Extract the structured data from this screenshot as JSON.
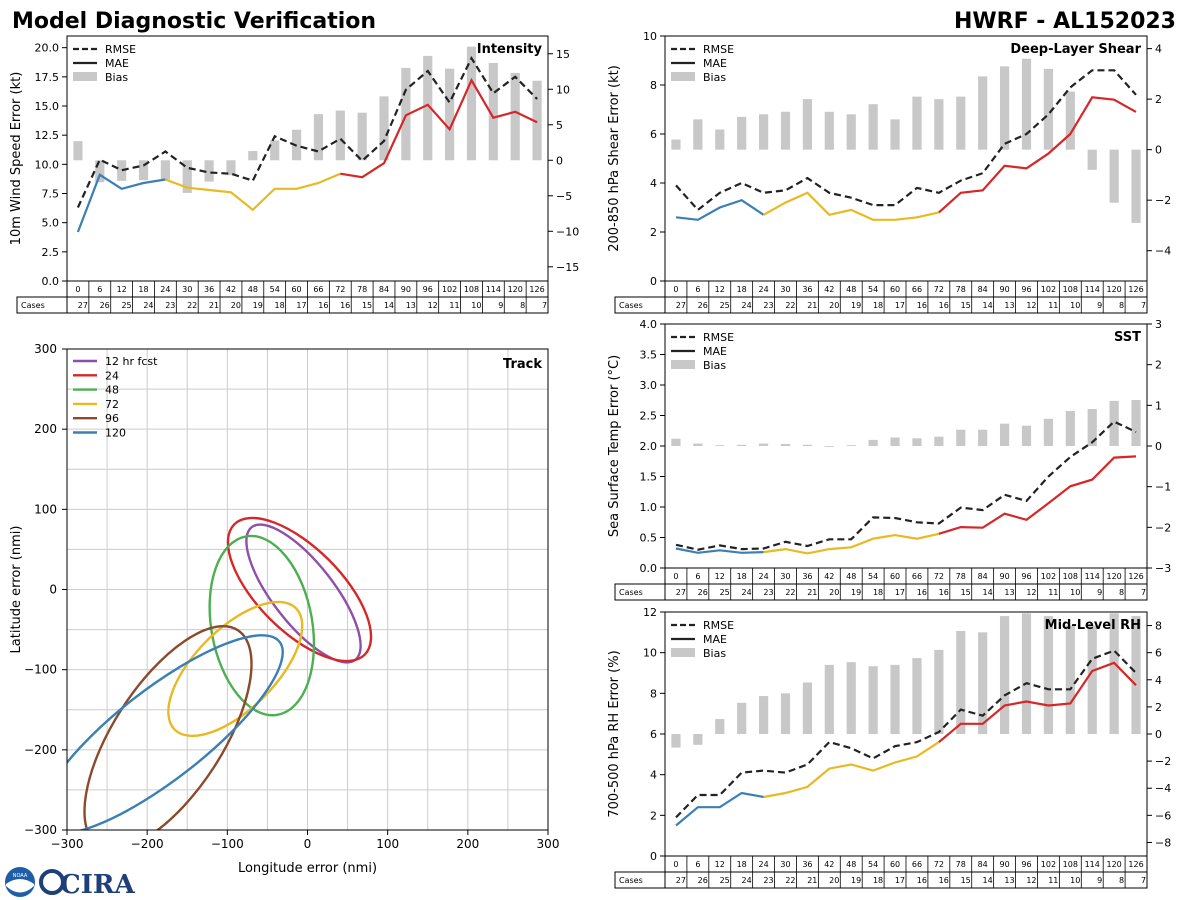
{
  "page": {
    "title_left": "Model Diagnostic Verification",
    "title_right": "HWRF - AL152023",
    "logo_text": "CIRA",
    "logo_seal_text": "NOAA"
  },
  "colors": {
    "rmse": "#222222",
    "mae_0_24": "#3a7fb5",
    "mae_24_72": "#e8b923",
    "mae_72_plus": "#d62728",
    "bias": "#c8c8c8",
    "grid": "#cccccc"
  },
  "chart_data": [
    {
      "id": "intensity",
      "type": "line",
      "title": "Intensity",
      "ylabel": "10m Wind Speed Error (kt)",
      "ylim": [
        0,
        21
      ],
      "yticks": [
        "0.0",
        "2.5",
        "5.0",
        "7.5",
        "10.0",
        "12.5",
        "15.0",
        "17.5",
        "20.0"
      ],
      "ytick_values": [
        0,
        2.5,
        5,
        7.5,
        10,
        12.5,
        15,
        17.5,
        20
      ],
      "y2lim": [
        -17,
        17.5
      ],
      "y2ticks": [
        "−15",
        "−10",
        "−5",
        "0",
        "5",
        "10",
        "15"
      ],
      "y2tick_values": [
        -15,
        -10,
        -5,
        0,
        5,
        10,
        15
      ],
      "legend": [
        "RMSE",
        "MAE",
        "Bias"
      ],
      "x": [
        0,
        6,
        12,
        18,
        24,
        30,
        36,
        42,
        48,
        54,
        60,
        66,
        72,
        78,
        84,
        90,
        96,
        102,
        108,
        114,
        120,
        126
      ],
      "rmse": [
        6.3,
        10.4,
        9.5,
        9.9,
        11.1,
        9.7,
        9.3,
        9.2,
        8.6,
        12.4,
        11.6,
        11.1,
        12.2,
        10.3,
        12.0,
        16.4,
        18.0,
        15.3,
        19.1,
        16.1,
        17.5,
        15.6
      ],
      "mae": [
        4.2,
        9.1,
        7.9,
        8.4,
        8.7,
        8.0,
        7.8,
        7.6,
        6.1,
        7.9,
        7.9,
        8.4,
        9.2,
        8.9,
        10.1,
        14.2,
        15.1,
        13.0,
        17.2,
        14.0,
        14.5,
        13.6
      ],
      "bias": [
        2.7,
        -3.1,
        -2.9,
        -2.8,
        -2.7,
        -4.6,
        -3.0,
        -2.1,
        1.3,
        2.8,
        4.3,
        6.5,
        7.0,
        6.7,
        9.0,
        13.0,
        14.7,
        12.9,
        16.0,
        13.7,
        12.3,
        11.2
      ],
      "cases": [
        27,
        26,
        25,
        24,
        23,
        22,
        21,
        20,
        19,
        18,
        17,
        16,
        16,
        15,
        14,
        13,
        12,
        11,
        10,
        9,
        8,
        7
      ],
      "cases_label": "Cases"
    },
    {
      "id": "shear",
      "type": "line",
      "title": "Deep-Layer Shear",
      "ylabel": "200-850 hPa Shear Error (kt)",
      "ylim": [
        0,
        10
      ],
      "yticks": [
        "0",
        "2",
        "4",
        "6",
        "8",
        "10"
      ],
      "ytick_values": [
        0,
        2,
        4,
        6,
        8,
        10
      ],
      "y2lim": [
        -5.2,
        4.5
      ],
      "y2ticks": [
        "−4",
        "−2",
        "0",
        "2",
        "4"
      ],
      "y2tick_values": [
        -4,
        -2,
        0,
        2,
        4
      ],
      "legend": [
        "RMSE",
        "MAE",
        "Bias"
      ],
      "x": [
        0,
        6,
        12,
        18,
        24,
        30,
        36,
        42,
        48,
        54,
        60,
        66,
        72,
        78,
        84,
        90,
        96,
        102,
        108,
        114,
        120,
        126
      ],
      "rmse": [
        3.9,
        2.9,
        3.6,
        4.0,
        3.6,
        3.7,
        4.2,
        3.6,
        3.4,
        3.1,
        3.1,
        3.8,
        3.6,
        4.1,
        4.4,
        5.6,
        6.0,
        6.8,
        7.9,
        8.6,
        8.6,
        7.6
      ],
      "mae": [
        2.6,
        2.5,
        3.0,
        3.3,
        2.7,
        3.2,
        3.6,
        2.7,
        2.9,
        2.5,
        2.5,
        2.6,
        2.8,
        3.6,
        3.7,
        4.7,
        4.6,
        5.2,
        6.0,
        7.5,
        7.4,
        6.9
      ],
      "bias": [
        0.4,
        1.2,
        0.8,
        1.3,
        1.4,
        1.5,
        2.0,
        1.5,
        1.4,
        1.8,
        1.2,
        2.1,
        2.0,
        2.1,
        2.9,
        3.3,
        3.6,
        3.2,
        2.3,
        -0.8,
        -2.1,
        -2.9
      ],
      "cases": [
        27,
        26,
        25,
        24,
        23,
        22,
        21,
        20,
        19,
        18,
        17,
        16,
        16,
        15,
        14,
        13,
        12,
        11,
        10,
        9,
        8,
        7
      ],
      "cases_label": "Cases"
    },
    {
      "id": "sst",
      "type": "line",
      "title": "SST",
      "ylabel": "Sea Surface Temp Error (°C)",
      "ylim": [
        0,
        4
      ],
      "yticks": [
        "0.0",
        "0.5",
        "1.0",
        "1.5",
        "2.0",
        "2.5",
        "3.0",
        "3.5",
        "4.0"
      ],
      "ytick_values": [
        0,
        0.5,
        1,
        1.5,
        2,
        2.5,
        3,
        3.5,
        4
      ],
      "y2lim": [
        -3,
        3
      ],
      "y2ticks": [
        "−3",
        "−2",
        "−1",
        "0",
        "1",
        "2",
        "3"
      ],
      "y2tick_values": [
        -3,
        -2,
        -1,
        0,
        1,
        2,
        3
      ],
      "legend": [
        "RMSE",
        "MAE",
        "Bias"
      ],
      "x": [
        0,
        6,
        12,
        18,
        24,
        30,
        36,
        42,
        48,
        54,
        60,
        66,
        72,
        78,
        84,
        90,
        96,
        102,
        108,
        114,
        120,
        126
      ],
      "rmse": [
        0.38,
        0.3,
        0.37,
        0.31,
        0.32,
        0.43,
        0.36,
        0.47,
        0.47,
        0.83,
        0.82,
        0.75,
        0.73,
        0.99,
        0.95,
        1.2,
        1.1,
        1.5,
        1.82,
        2.06,
        2.4,
        2.23
      ],
      "mae": [
        0.32,
        0.25,
        0.29,
        0.25,
        0.26,
        0.31,
        0.24,
        0.31,
        0.34,
        0.48,
        0.54,
        0.48,
        0.56,
        0.67,
        0.66,
        0.89,
        0.79,
        1.06,
        1.34,
        1.45,
        1.81,
        1.83
      ],
      "bias": [
        0.18,
        0.06,
        0.02,
        0.03,
        0.06,
        0.05,
        0.03,
        -0.02,
        0.02,
        0.15,
        0.21,
        0.19,
        0.23,
        0.4,
        0.4,
        0.55,
        0.5,
        0.67,
        0.86,
        0.91,
        1.11,
        1.13
      ],
      "cases": [
        27,
        26,
        25,
        24,
        23,
        22,
        21,
        20,
        19,
        18,
        17,
        16,
        16,
        15,
        14,
        13,
        12,
        11,
        10,
        9,
        8,
        7
      ],
      "cases_label": "Cases"
    },
    {
      "id": "rh",
      "type": "line",
      "title": "Mid-Level RH",
      "ylabel": "700-500 hPa RH Error (%)",
      "ylim": [
        0,
        12
      ],
      "yticks": [
        "0",
        "2",
        "4",
        "6",
        "8",
        "10",
        "12"
      ],
      "ytick_values": [
        0,
        2,
        4,
        6,
        8,
        10,
        12
      ],
      "y2lim": [
        -9,
        9
      ],
      "y2ticks": [
        "−8",
        "−6",
        "−4",
        "−2",
        "0",
        "2",
        "4",
        "6",
        "8"
      ],
      "y2tick_values": [
        -8,
        -6,
        -4,
        -2,
        0,
        2,
        4,
        6,
        8
      ],
      "legend": [
        "RMSE",
        "MAE",
        "Bias"
      ],
      "x": [
        0,
        6,
        12,
        18,
        24,
        30,
        36,
        42,
        48,
        54,
        60,
        66,
        72,
        78,
        84,
        90,
        96,
        102,
        108,
        114,
        120,
        126
      ],
      "rmse": [
        1.9,
        3.0,
        3.0,
        4.1,
        4.2,
        4.1,
        4.5,
        5.6,
        5.3,
        4.8,
        5.4,
        5.6,
        6.1,
        7.2,
        6.9,
        7.9,
        8.5,
        8.2,
        8.2,
        9.7,
        10.1,
        9.0
      ],
      "mae": [
        1.5,
        2.4,
        2.4,
        3.1,
        2.9,
        3.1,
        3.4,
        4.3,
        4.5,
        4.2,
        4.6,
        4.9,
        5.6,
        6.5,
        6.5,
        7.4,
        7.6,
        7.4,
        7.5,
        9.1,
        9.5,
        8.4
      ],
      "bias": [
        -1.0,
        -0.8,
        1.1,
        2.3,
        2.8,
        3.0,
        3.8,
        5.1,
        5.3,
        5.0,
        5.1,
        5.6,
        6.2,
        7.6,
        7.5,
        8.7,
        8.9,
        8.7,
        8.0,
        8.0,
        8.9,
        8.7
      ],
      "cases": [
        27,
        26,
        25,
        24,
        23,
        22,
        21,
        20,
        19,
        18,
        17,
        16,
        16,
        15,
        14,
        13,
        12,
        11,
        10,
        9,
        8,
        7
      ],
      "cases_label": "Cases"
    },
    {
      "id": "track",
      "type": "scatter",
      "title": "Track",
      "xlabel": "Longitude error (nmi)",
      "ylabel": "Latitude error (nmi)",
      "xlim": [
        -300,
        300
      ],
      "ylim": [
        -300,
        300
      ],
      "ticks": [
        "−300",
        "−200",
        "−100",
        "0",
        "100",
        "200",
        "300"
      ],
      "tick_values": [
        -300,
        -200,
        -100,
        0,
        100,
        200,
        300
      ],
      "legend_label_first": "12 hr fcst",
      "ellipses": [
        {
          "label": "12 hr fcst",
          "hour": 12,
          "color": "#8e4fa8",
          "cx": -5,
          "cy": -5,
          "a": 105,
          "b": 38,
          "angle": -52
        },
        {
          "label": "24",
          "hour": 24,
          "color": "#d62728",
          "cx": -10,
          "cy": 0,
          "a": 115,
          "b": 52,
          "angle": -45
        },
        {
          "label": "48",
          "hour": 48,
          "color": "#4caf50",
          "cx": -57,
          "cy": -45,
          "a": 113,
          "b": 63,
          "angle": -80
        },
        {
          "label": "72",
          "hour": 72,
          "color": "#e8b923",
          "cx": -90,
          "cy": -99,
          "a": 107,
          "b": 50,
          "angle": 45
        },
        {
          "label": "96",
          "hour": 96,
          "color": "#8b4a2b",
          "cx": -174,
          "cy": -185,
          "a": 160,
          "b": 68,
          "angle": 57
        },
        {
          "label": "120",
          "hour": 120,
          "color": "#3a7fb5",
          "cx": -183,
          "cy": -181,
          "a": 188,
          "b": 56,
          "angle": 38
        }
      ]
    }
  ]
}
